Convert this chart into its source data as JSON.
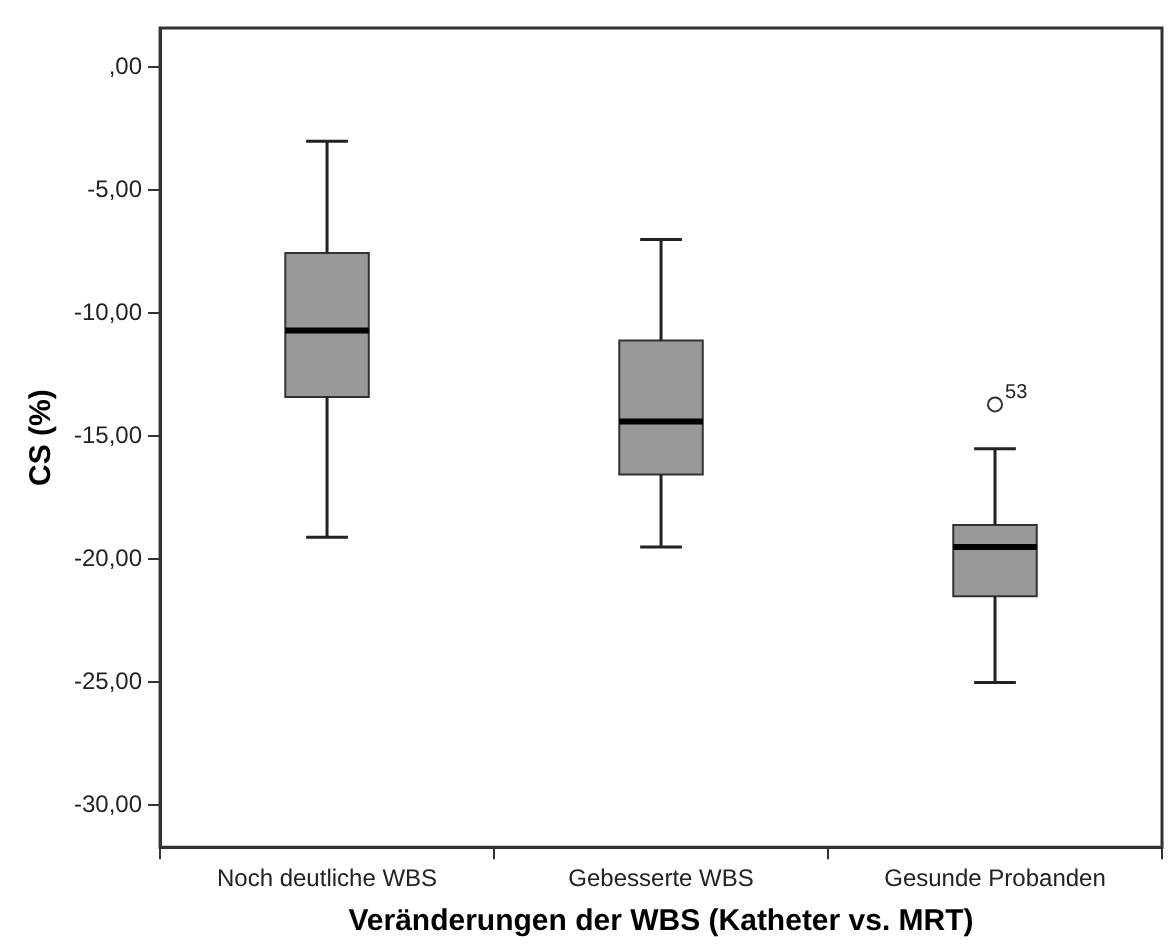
{
  "chart_data": {
    "type": "box",
    "xlabel": "Veränderungen der WBS (Katheter vs. MRT)",
    "ylabel": "CS (%)",
    "categories": [
      "Noch deutliche WBS",
      "Gebesserte WBS",
      "Gesunde Probanden"
    ],
    "color": "#999999",
    "boxes": [
      {
        "low": -19.1,
        "q1": -13.4,
        "median": -10.7,
        "q3": -7.55,
        "high": -3.0
      },
      {
        "low": -19.5,
        "q1": -16.55,
        "median": -14.4,
        "q3": -11.1,
        "high": -7.0
      },
      {
        "low": -25.0,
        "q1": -21.5,
        "median": -19.5,
        "q3": -18.6,
        "high": -15.5,
        "outliers": [
          -13.7
        ]
      }
    ],
    "ylim": [
      -31.7,
      1.6
    ],
    "yticks": [
      {
        "value": 0,
        "label": ",00"
      },
      {
        "value": -5,
        "label": "-5,00"
      },
      {
        "value": -10,
        "label": "-10,00"
      },
      {
        "value": -15,
        "label": "-15,00"
      },
      {
        "value": -20,
        "label": "-20,00"
      },
      {
        "value": -25,
        "label": "-25,00"
      },
      {
        "value": -30,
        "label": "-30,00"
      }
    ],
    "annotations": [
      "53"
    ],
    "grid": false,
    "legend": false
  }
}
